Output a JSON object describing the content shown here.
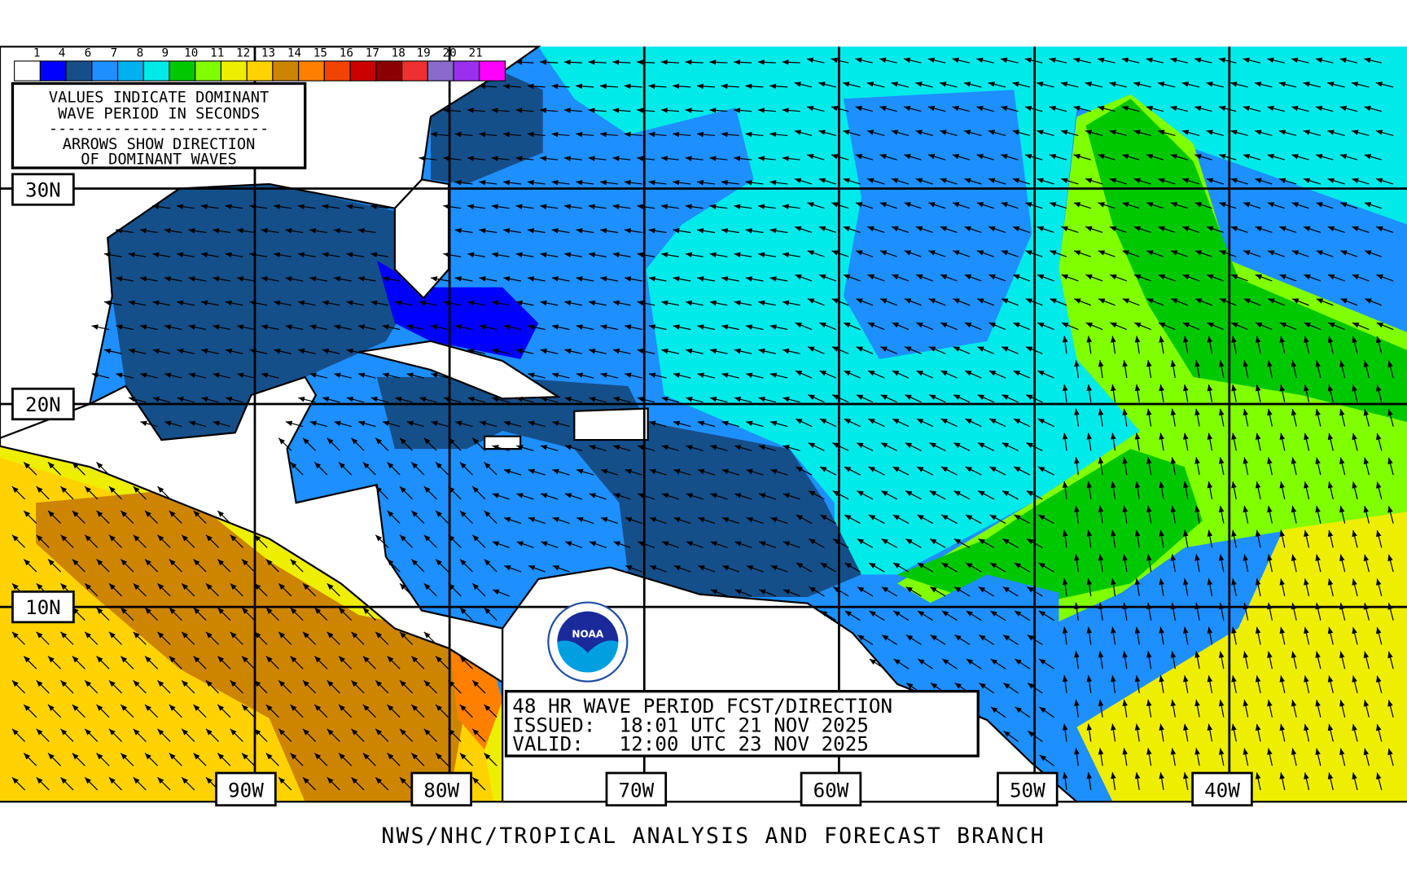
{
  "legend": {
    "labels": [
      "1",
      "4",
      "6",
      "7",
      "8",
      "9",
      "10",
      "11",
      "12",
      "13",
      "14",
      "15",
      "16",
      "17",
      "18",
      "19",
      "20",
      "21"
    ],
    "colors": [
      "#ffffff",
      "#0000ff",
      "#154f8a",
      "#1e8fff",
      "#00b0ef",
      "#00eaea",
      "#00c800",
      "#80ff00",
      "#eeee00",
      "#ffd200",
      "#cd8500",
      "#ff8000",
      "#f04400",
      "#cd0000",
      "#8b0000",
      "#ee3030",
      "#8a6acd",
      "#9a30ee",
      "#ff00ff"
    ],
    "note_line1": "VALUES INDICATE DOMINANT",
    "note_line2": "WAVE PERIOD IN SECONDS",
    "note_sep": "------------------------",
    "note_line3": "ARROWS SHOW DIRECTION",
    "note_line4": "OF DOMINANT WAVES"
  },
  "lat_labels": [
    "30N",
    "20N",
    "10N"
  ],
  "lon_labels": [
    "90W",
    "80W",
    "70W",
    "60W",
    "50W",
    "40W"
  ],
  "title_box": {
    "line1": "48 HR WAVE PERIOD FCST/DIRECTION",
    "line2": "ISSUED:  18:01 UTC 21 NOV 2025",
    "line3": "VALID:   12:00 UTC 23 NOV 2025"
  },
  "logo": {
    "text": "NOAA"
  },
  "footer": "NWS/NHC/TROPICAL ANALYSIS AND FORECAST BRANCH"
}
